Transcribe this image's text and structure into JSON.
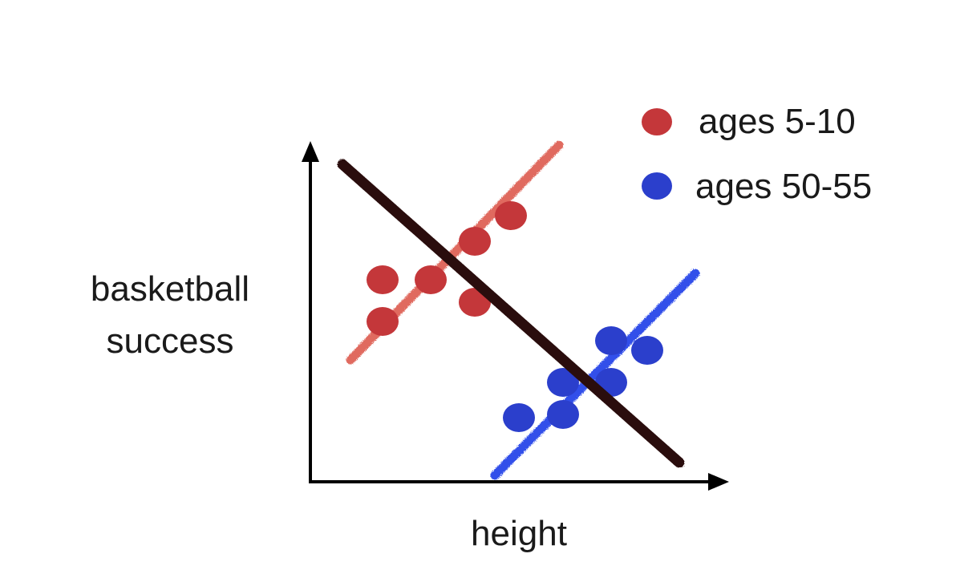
{
  "chart_data": {
    "type": "scatter",
    "xlabel": "height",
    "ylabel_lines": [
      "basketball",
      "success"
    ],
    "xlim": [
      0,
      10
    ],
    "ylim": [
      0,
      10
    ],
    "grid": false,
    "legend_placement": "top-right",
    "series": [
      {
        "name": "ages 5-10",
        "color": "#c4373a",
        "trend_color": "#e06a5f",
        "points": [
          {
            "x": 1.8,
            "y": 6.3
          },
          {
            "x": 1.8,
            "y": 5.0
          },
          {
            "x": 3.0,
            "y": 6.3
          },
          {
            "x": 4.1,
            "y": 7.5
          },
          {
            "x": 4.1,
            "y": 5.6
          },
          {
            "x": 5.0,
            "y": 8.3
          }
        ],
        "trend": {
          "x": [
            1.0,
            6.2
          ],
          "y": [
            3.8,
            10.5
          ]
        }
      },
      {
        "name": "ages 50-55",
        "color": "#2b3fcc",
        "trend_color": "#3350ea",
        "points": [
          {
            "x": 5.2,
            "y": 2.0
          },
          {
            "x": 6.3,
            "y": 2.1
          },
          {
            "x": 6.3,
            "y": 3.1
          },
          {
            "x": 7.5,
            "y": 3.1
          },
          {
            "x": 7.5,
            "y": 4.4
          },
          {
            "x": 8.4,
            "y": 4.1
          }
        ],
        "trend": {
          "x": [
            4.6,
            9.6
          ],
          "y": [
            0.2,
            6.5
          ]
        }
      }
    ],
    "overall_trend": {
      "color": "#2a0d0d",
      "x": [
        0.8,
        9.2
      ],
      "y": [
        9.9,
        0.6
      ]
    }
  }
}
